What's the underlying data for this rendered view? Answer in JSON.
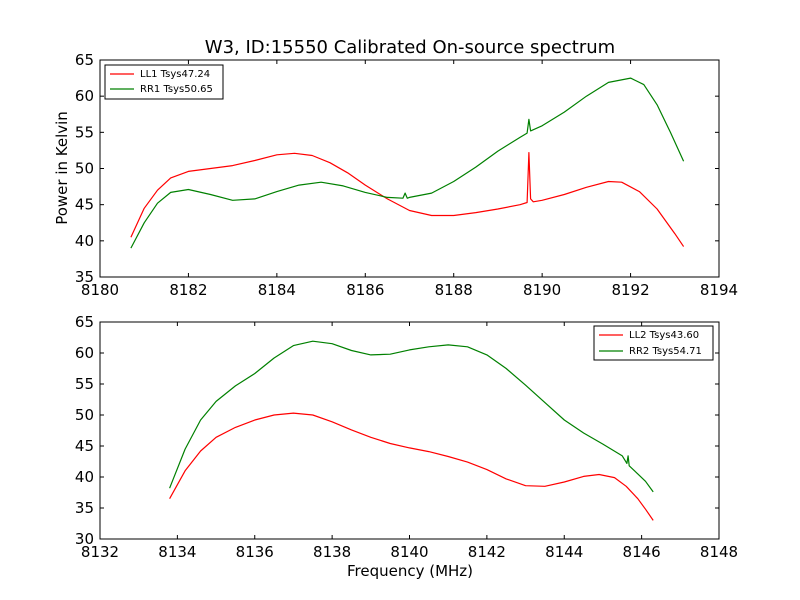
{
  "chart_data": [
    {
      "type": "line",
      "title": "W3, ID:15550 Calibrated On-source spectrum",
      "xlabel": "",
      "ylabel": "Power in Kelvin",
      "xlim": [
        8180,
        8194
      ],
      "ylim": [
        35,
        65
      ],
      "xticks": [
        "8180",
        "8182",
        "8184",
        "8186",
        "8188",
        "8190",
        "8192",
        "8194"
      ],
      "yticks": [
        "35",
        "40",
        "45",
        "50",
        "55",
        "60",
        "65"
      ],
      "grid": false,
      "legend_position": "top-left",
      "series": [
        {
          "name": "LL1 Tsys47.24",
          "color": "#ff0000",
          "x": [
            8180.7,
            8181.0,
            8181.3,
            8181.6,
            8182.0,
            8182.5,
            8183.0,
            8183.5,
            8184.0,
            8184.4,
            8184.8,
            8185.2,
            8185.6,
            8186.0,
            8186.5,
            8187.0,
            8187.5,
            8188.0,
            8188.5,
            8189.0,
            8189.5,
            8189.66,
            8189.7,
            8189.74,
            8189.8,
            8190.0,
            8190.5,
            8191.0,
            8191.5,
            8191.8,
            8192.2,
            8192.6,
            8193.0,
            8193.2
          ],
          "y": [
            40.5,
            44.5,
            47.0,
            48.7,
            49.6,
            50.0,
            50.4,
            51.1,
            51.9,
            52.1,
            51.8,
            50.8,
            49.4,
            47.7,
            45.8,
            44.2,
            43.5,
            43.5,
            43.9,
            44.4,
            45.0,
            45.3,
            52.2,
            45.8,
            45.4,
            45.6,
            46.4,
            47.4,
            48.2,
            48.1,
            46.8,
            44.4,
            41.0,
            39.2
          ]
        },
        {
          "name": "RR1 Tsys50.65",
          "color": "#008000",
          "x": [
            8180.7,
            8181.0,
            8181.3,
            8181.6,
            8182.0,
            8182.5,
            8183.0,
            8183.5,
            8184.0,
            8184.5,
            8185.0,
            8185.5,
            8186.0,
            8186.5,
            8186.85,
            8186.9,
            8186.95,
            8187.0,
            8187.5,
            8188.0,
            8188.5,
            8189.0,
            8189.5,
            8189.66,
            8189.7,
            8189.74,
            8190.0,
            8190.5,
            8191.0,
            8191.5,
            8192.0,
            8192.3,
            8192.6,
            8192.9,
            8193.2
          ],
          "y": [
            39.0,
            42.5,
            45.2,
            46.7,
            47.1,
            46.4,
            45.6,
            45.8,
            46.8,
            47.7,
            48.1,
            47.6,
            46.7,
            46.0,
            45.9,
            46.6,
            45.9,
            46.0,
            46.6,
            48.2,
            50.2,
            52.4,
            54.3,
            54.9,
            56.8,
            55.2,
            55.9,
            57.8,
            60.0,
            61.9,
            62.5,
            61.6,
            58.8,
            55.0,
            51.0
          ]
        }
      ]
    },
    {
      "type": "line",
      "title": "",
      "xlabel": "Frequency (MHz)",
      "ylabel": "",
      "xlim": [
        8132,
        8148
      ],
      "ylim": [
        30,
        65
      ],
      "xticks": [
        "8132",
        "8134",
        "8136",
        "8138",
        "8140",
        "8142",
        "8144",
        "8146",
        "8148"
      ],
      "yticks": [
        "30",
        "35",
        "40",
        "45",
        "50",
        "55",
        "60",
        "65"
      ],
      "grid": false,
      "legend_position": "top-right",
      "series": [
        {
          "name": "LL2 Tsys43.60",
          "color": "#ff0000",
          "x": [
            8133.8,
            8134.2,
            8134.6,
            8135.0,
            8135.5,
            8136.0,
            8136.5,
            8137.0,
            8137.5,
            8138.0,
            8138.5,
            8139.0,
            8139.5,
            8140.0,
            8140.5,
            8141.0,
            8141.5,
            8142.0,
            8142.5,
            8143.0,
            8143.5,
            8144.0,
            8144.5,
            8144.9,
            8145.3,
            8145.6,
            8145.9,
            8146.1,
            8146.3
          ],
          "y": [
            36.5,
            41.0,
            44.2,
            46.4,
            48.0,
            49.2,
            50.0,
            50.3,
            50.0,
            48.9,
            47.6,
            46.4,
            45.4,
            44.7,
            44.1,
            43.3,
            42.4,
            41.2,
            39.7,
            38.6,
            38.5,
            39.2,
            40.1,
            40.4,
            39.9,
            38.5,
            36.5,
            34.8,
            33.0
          ]
        },
        {
          "name": "RR2 Tsys54.71",
          "color": "#008000",
          "x": [
            8133.8,
            8134.2,
            8134.6,
            8135.0,
            8135.5,
            8136.0,
            8136.5,
            8137.0,
            8137.5,
            8138.0,
            8138.5,
            8139.0,
            8139.5,
            8140.0,
            8140.5,
            8141.0,
            8141.5,
            8142.0,
            8142.5,
            8143.0,
            8143.5,
            8144.0,
            8144.5,
            8145.0,
            8145.5,
            8145.62,
            8145.65,
            8145.68,
            8145.9,
            8146.1,
            8146.3
          ],
          "y": [
            38.2,
            44.5,
            49.2,
            52.2,
            54.7,
            56.7,
            59.2,
            61.2,
            61.9,
            61.5,
            60.4,
            59.7,
            59.8,
            60.5,
            61.0,
            61.3,
            61.0,
            59.7,
            57.5,
            54.8,
            52.0,
            49.2,
            47.1,
            45.3,
            43.4,
            42.2,
            43.4,
            41.8,
            40.5,
            39.3,
            37.6
          ]
        }
      ]
    }
  ]
}
